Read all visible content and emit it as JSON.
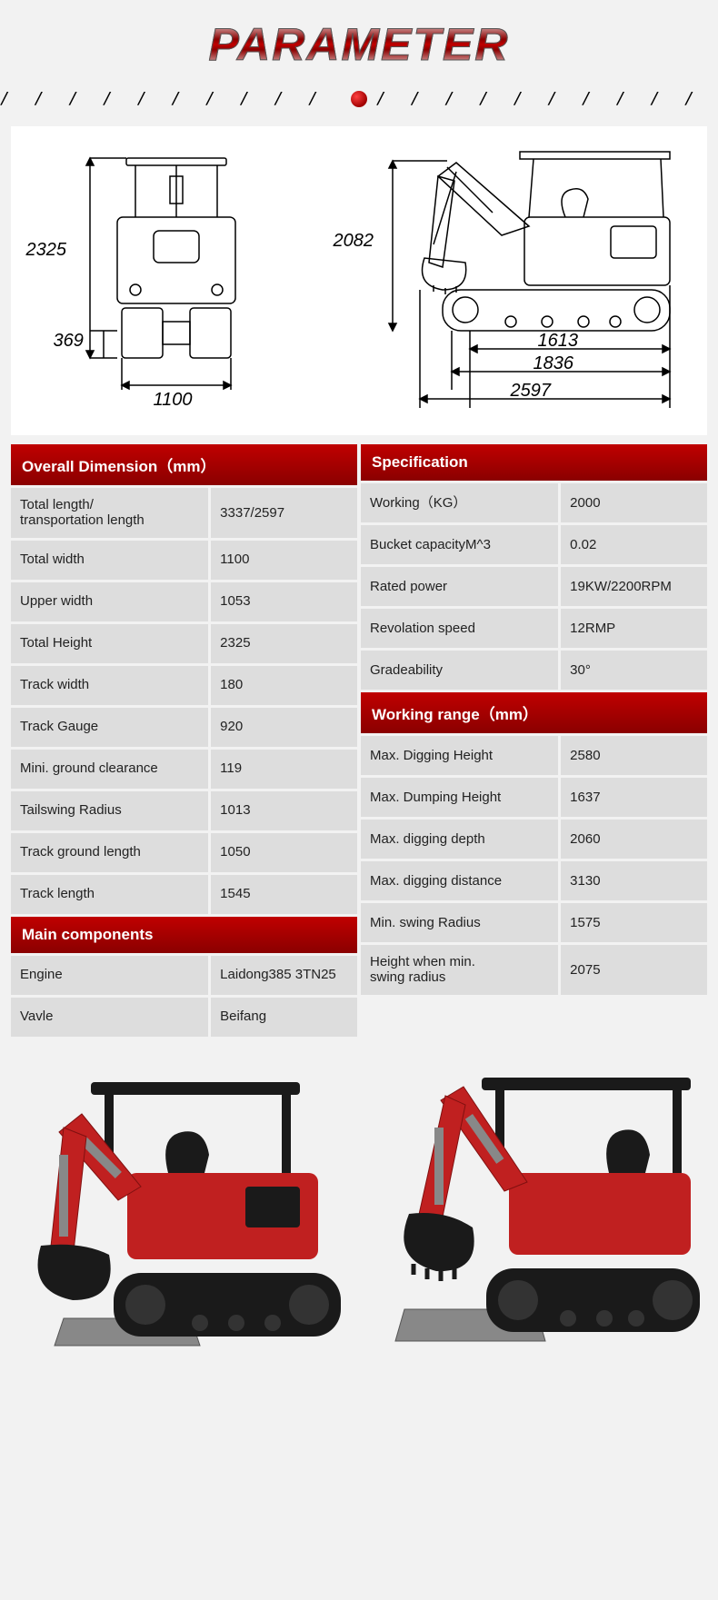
{
  "title": "PARAMETER",
  "colors": {
    "header_bg_top": "#c00000",
    "header_bg_bottom": "#8a0000",
    "header_text": "#ffffff",
    "row_bg": "#dddddd",
    "page_bg": "#f2f2f2",
    "diagram_bg": "#ffffff",
    "text": "#222222",
    "excavator_red": "#c02020",
    "excavator_black": "#1a1a1a"
  },
  "diagram": {
    "front": {
      "height": "2325",
      "clearance": "369",
      "width": "1100"
    },
    "side": {
      "boom_height": "2082",
      "track_inner": "1613",
      "track_outer": "1836",
      "total_length": "2597"
    }
  },
  "tables": {
    "left": [
      {
        "type": "header",
        "text": "Overall Dimension（mm）"
      },
      {
        "label": "Total length/\ntransportation length",
        "value": "3337/2597"
      },
      {
        "label": "Total width",
        "value": "1100"
      },
      {
        "label": "Upper width",
        "value": "1053"
      },
      {
        "label": "Total Height",
        "value": "2325"
      },
      {
        "label": "Track width",
        "value": "180"
      },
      {
        "label": "Track Gauge",
        "value": "920"
      },
      {
        "label": "Mini. ground clearance",
        "value": "119"
      },
      {
        "label": "Tailswing Radius",
        "value": "1013"
      },
      {
        "label": "Track ground length",
        "value": "1050"
      },
      {
        "label": "Track length",
        "value": "1545"
      },
      {
        "type": "header",
        "text": "Main components"
      },
      {
        "label": "Engine",
        "value": "Laidong385 3TN25"
      },
      {
        "label": "Vavle",
        "value": "Beifang"
      }
    ],
    "right": [
      {
        "type": "header",
        "text": "Specification"
      },
      {
        "label": "Working（KG）",
        "value": "2000"
      },
      {
        "label": "Bucket capacityM^3",
        "value": "0.02"
      },
      {
        "label": "Rated power",
        "value": "19KW/2200RPM"
      },
      {
        "label": "Revolation speed",
        "value": "12RMP"
      },
      {
        "label": "Gradeability",
        "value": "30°"
      },
      {
        "type": "header",
        "text": "Working range（mm）"
      },
      {
        "label": "Max. Digging Height",
        "value": "2580"
      },
      {
        "label": "Max. Dumping Height",
        "value": "1637"
      },
      {
        "label": "Max. digging depth",
        "value": "2060"
      },
      {
        "label": "Max. digging distance",
        "value": "3130"
      },
      {
        "label": "Min. swing Radius",
        "value": "1575"
      },
      {
        "label": "Height when min.\n swing radius",
        "value": "2075"
      }
    ]
  }
}
